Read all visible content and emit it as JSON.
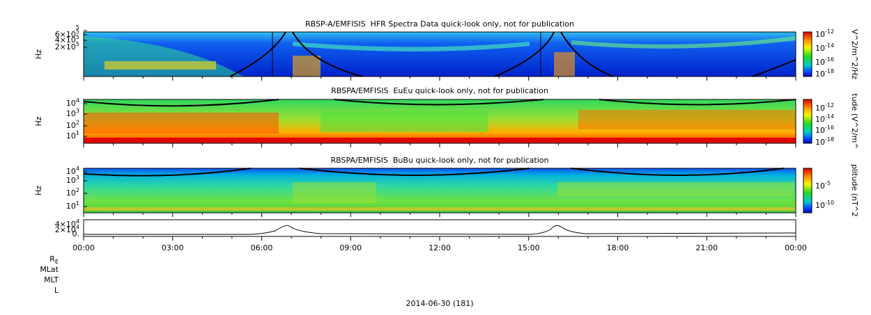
{
  "spectrogram_panels": [
    {
      "title": "RBSP-A/EMFISIS  HFR Spectra Data quick-look only, not for publication",
      "y_label": "Hz",
      "y_ticks": [
        {
          "exponent": "5"
        },
        {
          "base": "6×10",
          "exponent": "5"
        },
        {
          "base": "4×10",
          "exponent": "5"
        },
        {
          "base": "2×10",
          "exponent": "5"
        }
      ],
      "colorbar_label": "V^2/m^2/Hz",
      "colorbar_ticks": [
        {
          "base": "10",
          "exponent": "-12"
        },
        {
          "base": "10",
          "exponent": "-14"
        },
        {
          "base": "10",
          "exponent": "-16"
        },
        {
          "base": "10",
          "exponent": "-18"
        }
      ]
    },
    {
      "title": "RBSPA/EMFISIS  EuEu quick-look only, not for publication",
      "y_label": "Hz",
      "y_ticks": [
        {
          "base": "10",
          "exponent": "4"
        },
        {
          "base": "10",
          "exponent": "3"
        },
        {
          "base": "10",
          "exponent": "2"
        },
        {
          "base": "10",
          "exponent": "1"
        }
      ],
      "colorbar_label": "tude (V^2/m^",
      "colorbar_ticks": [
        {
          "base": "10",
          "exponent": "-12"
        },
        {
          "base": "10",
          "exponent": "-14"
        },
        {
          "base": "10",
          "exponent": "-16"
        },
        {
          "base": "10",
          "exponent": "-18"
        }
      ]
    },
    {
      "title": "RBSPA/EMFISIS  BuBu quick-look only, not for publication",
      "y_label": "Hz",
      "y_ticks": [
        {
          "base": "10",
          "exponent": "4"
        },
        {
          "base": "10",
          "exponent": "3"
        },
        {
          "base": "10",
          "exponent": "2"
        },
        {
          "base": "10",
          "exponent": "1"
        }
      ],
      "colorbar_label": "plitude (nT^2",
      "colorbar_ticks": [
        {
          "base": "10",
          "exponent": "-5"
        },
        {
          "base": "10",
          "exponent": "-10"
        }
      ]
    }
  ],
  "ephemeris_panel": {
    "y_ticks": [
      {
        "base": "4×10",
        "exponent": "4"
      },
      {
        "base": "2×10",
        "exponent": "4"
      },
      {
        "base": "0."
      }
    ]
  },
  "x_ticks": [
    "00:00",
    "03:00",
    "06:00",
    "09:00",
    "12:00",
    "15:00",
    "18:00",
    "21:00",
    "00:00"
  ],
  "row_labels": [
    {
      "base": "R",
      "subscript": "E"
    },
    {
      "base": "MLat"
    },
    {
      "base": "MLT"
    },
    {
      "base": "L"
    }
  ],
  "date": "2014-06-30 (181)"
}
